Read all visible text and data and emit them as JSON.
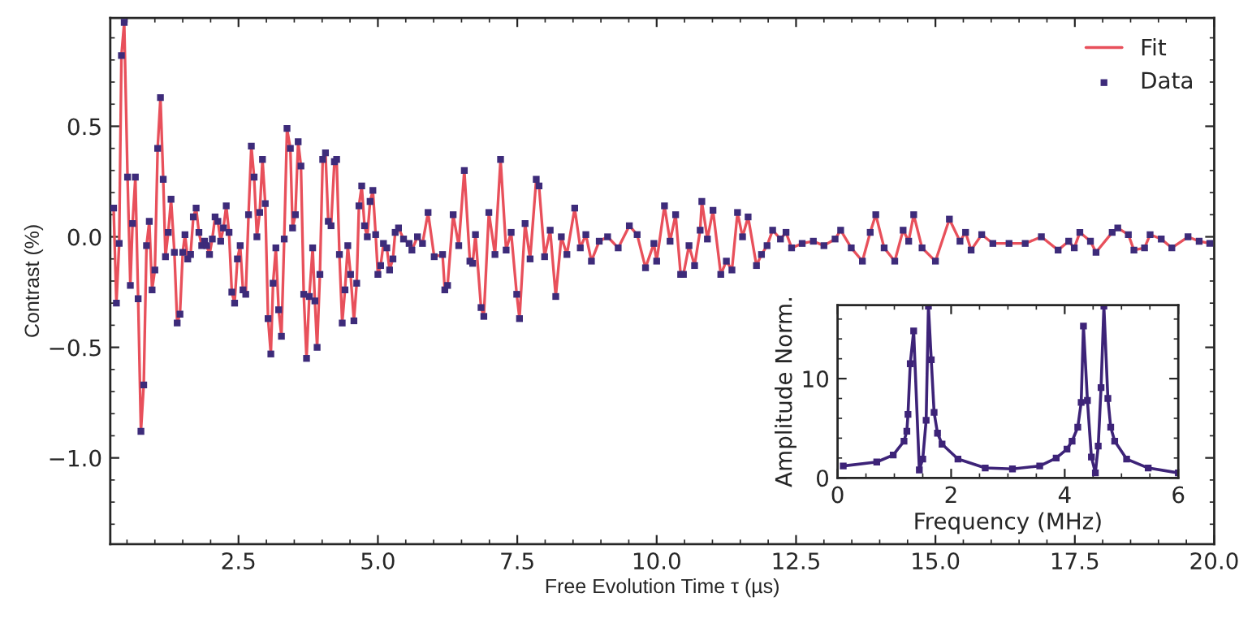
{
  "chart_data": [
    {
      "type": "line",
      "xlabel": "Free Evolution Time τ (µs)",
      "ylabel": "Contrast (%)",
      "xlim": [
        0.2,
        20.0
      ],
      "ylim": [
        -1.39,
        0.99
      ],
      "xticks": [
        {
          "value": 2.5,
          "label": "2.5"
        },
        {
          "value": 5.0,
          "label": "5.0"
        },
        {
          "value": 7.5,
          "label": "7.5"
        },
        {
          "value": 10.0,
          "label": "10.0"
        },
        {
          "value": 12.5,
          "label": "12.5"
        },
        {
          "value": 15.0,
          "label": "15.0"
        },
        {
          "value": 17.5,
          "label": "17.5"
        },
        {
          "value": 20.0,
          "label": "20.0"
        }
      ],
      "yticks": [
        {
          "value": -1.0,
          "label": "−1.0"
        },
        {
          "value": -0.5,
          "label": "−0.5"
        },
        {
          "value": 0.0,
          "label": "0.0"
        },
        {
          "value": 0.5,
          "label": "0.5"
        }
      ],
      "legend": "top right",
      "grid": false,
      "series": [
        {
          "name": "Fit",
          "type": "line",
          "color": "#e8505b",
          "x": [
            0.26,
            0.31,
            0.36,
            0.4,
            0.45,
            0.51,
            0.56,
            0.6,
            0.65,
            0.7,
            0.75,
            0.8,
            0.85,
            0.9,
            0.95,
            1.0,
            1.05,
            1.1,
            1.15,
            1.19,
            1.24,
            1.29,
            1.35,
            1.4,
            1.45,
            1.5,
            1.54,
            1.59,
            1.64,
            1.69,
            1.74,
            1.79,
            1.84,
            1.89,
            1.93,
            1.98,
            2.03,
            2.08,
            2.13,
            2.18,
            2.23,
            2.28,
            2.33,
            2.38,
            2.43,
            2.48,
            2.53,
            2.58,
            2.63,
            2.68,
            2.73,
            2.78,
            2.83,
            2.88,
            2.93,
            2.98,
            3.03,
            3.08,
            3.12,
            3.17,
            3.22,
            3.27,
            3.32,
            3.37,
            3.43,
            3.47,
            3.52,
            3.57,
            3.62,
            3.67,
            3.72,
            3.77,
            3.83,
            3.87,
            3.91,
            3.96,
            4.01,
            4.06,
            4.11,
            4.16,
            4.22,
            4.26,
            4.31,
            4.36,
            4.41,
            4.46,
            4.51,
            4.57,
            4.62,
            4.66,
            4.71,
            4.76,
            4.81,
            4.86,
            4.91,
            4.96,
            5.0,
            5.05,
            5.1,
            5.16,
            5.21,
            5.27,
            5.31,
            5.37,
            5.46,
            5.56,
            5.61,
            5.71,
            5.8,
            5.9,
            6.01,
            6.16,
            6.2,
            6.25,
            6.35,
            6.45,
            6.55,
            6.65,
            6.7,
            6.75,
            6.85,
            6.9,
            6.99,
            7.1,
            7.2,
            7.3,
            7.39,
            7.49,
            7.54,
            7.64,
            7.73,
            7.84,
            7.89,
            7.99,
            8.09,
            8.19,
            8.29,
            8.39,
            8.53,
            8.63,
            8.73,
            8.83,
            8.97,
            9.12,
            9.31,
            9.51,
            9.65,
            9.8,
            9.95,
            10.0,
            10.14,
            10.24,
            10.34,
            10.43,
            10.48,
            10.58,
            10.68,
            10.78,
            10.81,
            10.91,
            11.01,
            11.15,
            11.25,
            11.35,
            11.45,
            11.54,
            11.64,
            11.79,
            11.88,
            11.98,
            12.08,
            12.22,
            12.32,
            12.42,
            12.61,
            12.81,
            13.0,
            13.2,
            13.3,
            13.49,
            13.69,
            13.83,
            13.93,
            14.08,
            14.27,
            14.42,
            14.52,
            14.61,
            14.76,
            15.0,
            15.25,
            15.44,
            15.54,
            15.64,
            15.83,
            16.03,
            16.32,
            16.61,
            16.9,
            17.2,
            17.39,
            17.49,
            17.59,
            17.78,
            17.88,
            18.17,
            18.27,
            18.46,
            18.56,
            18.75,
            18.85,
            19.05,
            19.24,
            19.53,
            19.73,
            19.92
          ],
          "values": [
            0.13,
            -0.3,
            -0.03,
            0.82,
            0.97,
            0.27,
            -0.22,
            0.06,
            0.27,
            -0.28,
            -0.88,
            -0.67,
            -0.04,
            0.07,
            -0.24,
            -0.15,
            0.4,
            0.63,
            0.26,
            -0.09,
            0.02,
            0.17,
            -0.07,
            -0.39,
            -0.35,
            -0.07,
            0.01,
            -0.1,
            -0.08,
            0.09,
            0.13,
            0.02,
            -0.04,
            -0.02,
            -0.04,
            -0.08,
            -0.01,
            0.09,
            0.07,
            -0.02,
            0.04,
            0.14,
            0.02,
            -0.25,
            -0.3,
            -0.1,
            -0.04,
            -0.24,
            -0.26,
            0.1,
            0.41,
            0.27,
            0.0,
            0.11,
            0.35,
            0.15,
            -0.37,
            -0.53,
            -0.21,
            -0.05,
            -0.33,
            -0.45,
            -0.01,
            0.49,
            0.4,
            0.04,
            0.1,
            0.43,
            0.32,
            -0.26,
            -0.55,
            -0.27,
            -0.05,
            -0.29,
            -0.5,
            -0.17,
            0.35,
            0.38,
            0.07,
            0.05,
            0.34,
            0.35,
            -0.08,
            -0.39,
            -0.24,
            -0.04,
            -0.17,
            -0.38,
            -0.21,
            0.14,
            0.23,
            0.05,
            0.0,
            0.16,
            0.21,
            0.01,
            -0.17,
            -0.13,
            -0.03,
            -0.05,
            -0.15,
            -0.1,
            0.02,
            0.04,
            -0.01,
            -0.03,
            -0.06,
            0.0,
            -0.03,
            0.11,
            -0.09,
            -0.08,
            -0.24,
            -0.22,
            0.1,
            -0.04,
            0.3,
            -0.11,
            -0.12,
            0.01,
            -0.32,
            -0.36,
            0.11,
            -0.08,
            0.35,
            -0.06,
            0.02,
            -0.26,
            -0.37,
            0.06,
            -0.1,
            0.26,
            0.23,
            -0.09,
            0.03,
            -0.27,
            0.0,
            -0.08,
            0.13,
            -0.05,
            0.01,
            -0.11,
            -0.02,
            0.0,
            -0.05,
            0.05,
            0.01,
            -0.14,
            -0.03,
            -0.11,
            0.14,
            -0.02,
            0.1,
            -0.17,
            -0.17,
            -0.04,
            -0.13,
            0.03,
            0.16,
            -0.01,
            0.12,
            -0.17,
            -0.11,
            -0.15,
            0.11,
            0.0,
            0.09,
            -0.13,
            -0.08,
            -0.04,
            0.03,
            -0.01,
            0.02,
            -0.05,
            -0.03,
            -0.02,
            -0.04,
            -0.01,
            0.03,
            -0.05,
            -0.11,
            0.02,
            0.1,
            -0.05,
            -0.11,
            0.03,
            -0.02,
            0.1,
            -0.05,
            -0.11,
            0.08,
            -0.02,
            0.02,
            -0.06,
            0.01,
            -0.03,
            -0.03,
            -0.03,
            0.0,
            -0.06,
            -0.02,
            -0.05,
            0.02,
            -0.02,
            -0.07,
            0.02,
            0.04,
            0.01,
            -0.06,
            -0.05,
            0.01,
            -0.01,
            -0.05,
            0.0,
            -0.02,
            -0.03
          ]
        },
        {
          "name": "Data",
          "type": "scatter",
          "marker": "square",
          "color": "#3d2b7a",
          "x": [
            0.26,
            0.31,
            0.36,
            0.4,
            0.45,
            0.51,
            0.56,
            0.6,
            0.65,
            0.7,
            0.75,
            0.8,
            0.85,
            0.9,
            0.95,
            1.0,
            1.05,
            1.1,
            1.15,
            1.19,
            1.24,
            1.29,
            1.35,
            1.4,
            1.45,
            1.5,
            1.54,
            1.59,
            1.64,
            1.69,
            1.74,
            1.79,
            1.84,
            1.89,
            1.93,
            1.98,
            2.03,
            2.08,
            2.13,
            2.18,
            2.23,
            2.28,
            2.33,
            2.38,
            2.43,
            2.48,
            2.53,
            2.58,
            2.63,
            2.68,
            2.73,
            2.78,
            2.83,
            2.88,
            2.93,
            2.98,
            3.03,
            3.08,
            3.12,
            3.17,
            3.22,
            3.27,
            3.32,
            3.37,
            3.43,
            3.47,
            3.52,
            3.57,
            3.62,
            3.67,
            3.72,
            3.77,
            3.83,
            3.87,
            3.91,
            3.96,
            4.01,
            4.06,
            4.11,
            4.16,
            4.22,
            4.26,
            4.31,
            4.36,
            4.41,
            4.46,
            4.51,
            4.57,
            4.62,
            4.66,
            4.71,
            4.76,
            4.81,
            4.86,
            4.91,
            4.96,
            5.0,
            5.05,
            5.1,
            5.16,
            5.21,
            5.27,
            5.31,
            5.37,
            5.46,
            5.56,
            5.61,
            5.71,
            5.8,
            5.9,
            6.01,
            6.16,
            6.2,
            6.25,
            6.35,
            6.45,
            6.55,
            6.65,
            6.7,
            6.75,
            6.85,
            6.9,
            6.99,
            7.1,
            7.2,
            7.3,
            7.39,
            7.49,
            7.54,
            7.64,
            7.73,
            7.84,
            7.89,
            7.99,
            8.09,
            8.19,
            8.29,
            8.39,
            8.53,
            8.63,
            8.73,
            8.83,
            8.97,
            9.12,
            9.31,
            9.51,
            9.65,
            9.8,
            9.95,
            10.0,
            10.14,
            10.24,
            10.34,
            10.43,
            10.48,
            10.58,
            10.68,
            10.78,
            10.81,
            10.91,
            11.01,
            11.15,
            11.25,
            11.35,
            11.45,
            11.54,
            11.64,
            11.79,
            11.88,
            11.98,
            12.08,
            12.22,
            12.32,
            12.42,
            12.61,
            12.81,
            13.0,
            13.2,
            13.3,
            13.49,
            13.69,
            13.83,
            13.93,
            14.08,
            14.27,
            14.42,
            14.52,
            14.61,
            14.76,
            15.0,
            15.25,
            15.44,
            15.54,
            15.64,
            15.83,
            16.03,
            16.32,
            16.61,
            16.9,
            17.2,
            17.39,
            17.49,
            17.59,
            17.78,
            17.88,
            18.17,
            18.27,
            18.46,
            18.56,
            18.75,
            18.85,
            19.05,
            19.24,
            19.53,
            19.73,
            19.92
          ],
          "values": [
            0.13,
            -0.3,
            -0.03,
            0.82,
            0.97,
            0.27,
            -0.22,
            0.06,
            0.27,
            -0.28,
            -0.88,
            -0.67,
            -0.04,
            0.07,
            -0.24,
            -0.15,
            0.4,
            0.63,
            0.26,
            -0.09,
            0.02,
            0.17,
            -0.07,
            -0.39,
            -0.35,
            -0.07,
            0.01,
            -0.1,
            -0.08,
            0.09,
            0.13,
            0.02,
            -0.04,
            -0.02,
            -0.04,
            -0.08,
            -0.01,
            0.09,
            0.07,
            -0.02,
            0.04,
            0.14,
            0.02,
            -0.25,
            -0.3,
            -0.1,
            -0.04,
            -0.24,
            -0.26,
            0.1,
            0.41,
            0.27,
            0.0,
            0.11,
            0.35,
            0.15,
            -0.37,
            -0.53,
            -0.21,
            -0.05,
            -0.33,
            -0.45,
            -0.01,
            0.49,
            0.4,
            0.04,
            0.1,
            0.43,
            0.32,
            -0.26,
            -0.55,
            -0.27,
            -0.05,
            -0.29,
            -0.5,
            -0.17,
            0.35,
            0.38,
            0.07,
            0.05,
            0.34,
            0.35,
            -0.08,
            -0.39,
            -0.24,
            -0.04,
            -0.17,
            -0.38,
            -0.21,
            0.14,
            0.23,
            0.05,
            0.0,
            0.16,
            0.21,
            0.01,
            -0.17,
            -0.13,
            -0.03,
            -0.05,
            -0.15,
            -0.1,
            0.02,
            0.04,
            -0.01,
            -0.03,
            -0.06,
            0.0,
            -0.03,
            0.11,
            -0.09,
            -0.08,
            -0.24,
            -0.22,
            0.1,
            -0.04,
            0.3,
            -0.11,
            -0.12,
            0.01,
            -0.32,
            -0.36,
            0.11,
            -0.08,
            0.35,
            -0.06,
            0.02,
            -0.26,
            -0.37,
            0.06,
            -0.1,
            0.26,
            0.23,
            -0.09,
            0.03,
            -0.27,
            0.0,
            -0.08,
            0.13,
            -0.05,
            0.01,
            -0.11,
            -0.02,
            0.0,
            -0.05,
            0.05,
            0.01,
            -0.14,
            -0.03,
            -0.11,
            0.14,
            -0.02,
            0.1,
            -0.17,
            -0.17,
            -0.04,
            -0.13,
            0.03,
            0.16,
            -0.01,
            0.12,
            -0.17,
            -0.11,
            -0.15,
            0.11,
            0.0,
            0.09,
            -0.13,
            -0.08,
            -0.04,
            0.03,
            -0.01,
            0.02,
            -0.05,
            -0.03,
            -0.02,
            -0.04,
            -0.01,
            0.03,
            -0.05,
            -0.11,
            0.02,
            0.1,
            -0.05,
            -0.11,
            0.03,
            -0.02,
            0.1,
            -0.05,
            -0.11,
            0.08,
            -0.02,
            0.02,
            -0.06,
            0.01,
            -0.03,
            -0.03,
            -0.03,
            0.0,
            -0.06,
            -0.02,
            -0.05,
            0.02,
            -0.02,
            -0.07,
            0.02,
            0.04,
            0.01,
            -0.06,
            -0.05,
            0.01,
            -0.01,
            -0.05,
            0.0,
            -0.02,
            -0.03
          ]
        }
      ]
    },
    {
      "type": "line",
      "marker": "square",
      "xlabel": "Frequency (MHz)",
      "ylabel": "Amplitude Norm.",
      "xlim": [
        0,
        6
      ],
      "ylim": [
        0,
        17.4
      ],
      "xticks": [
        0,
        2,
        4,
        6
      ],
      "yticks": [
        0,
        10
      ],
      "grid": false,
      "series": [
        {
          "color": "#3d2378",
          "x": [
            0.1,
            0.69,
            0.98,
            1.17,
            1.22,
            1.24,
            1.28,
            1.34,
            1.44,
            1.5,
            1.56,
            1.6,
            1.65,
            1.7,
            1.76,
            1.84,
            2.12,
            2.6,
            3.08,
            3.56,
            3.85,
            4.04,
            4.13,
            4.23,
            4.29,
            4.33,
            4.4,
            4.47,
            4.54,
            4.59,
            4.64,
            4.69,
            4.76,
            4.81,
            4.88,
            5.09,
            5.47,
            6.0
          ],
          "values": [
            1.2,
            1.6,
            2.3,
            3.7,
            4.7,
            6.4,
            11.5,
            14.8,
            0.8,
            1.9,
            5.8,
            17.3,
            11.9,
            6.6,
            4.5,
            3.4,
            1.9,
            1.0,
            0.9,
            1.2,
            2.0,
            2.9,
            3.7,
            5.1,
            7.6,
            15.3,
            7.8,
            2.1,
            0.5,
            3.2,
            9.1,
            17.3,
            8.0,
            5.1,
            3.7,
            1.9,
            1.0,
            0.5
          ]
        }
      ]
    }
  ]
}
